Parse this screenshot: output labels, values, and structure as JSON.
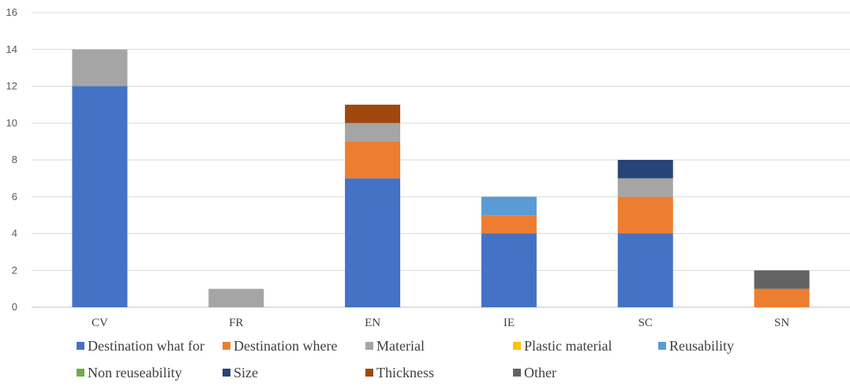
{
  "chart_data": {
    "type": "bar",
    "stacked": true,
    "categories": [
      "CV",
      "FR",
      "EN",
      "IE",
      "SC",
      "SN"
    ],
    "ylim": [
      0,
      16
    ],
    "yticks": [
      0,
      2,
      4,
      6,
      8,
      10,
      12,
      14,
      16
    ],
    "grid": true,
    "legend_position": "bottom",
    "series": [
      {
        "name": "Destination what for",
        "color": "#4472C4",
        "values": [
          12,
          0,
          7,
          4,
          4,
          0
        ]
      },
      {
        "name": "Destination where",
        "color": "#ED7D31",
        "values": [
          0,
          0,
          2,
          1,
          2,
          1
        ]
      },
      {
        "name": "Material",
        "color": "#A5A5A5",
        "values": [
          2,
          1,
          1,
          0,
          1,
          0
        ]
      },
      {
        "name": "Plastic material",
        "color": "#FFC000",
        "values": [
          0,
          0,
          0,
          0,
          0,
          0
        ]
      },
      {
        "name": "Reusability",
        "color": "#5B9BD5",
        "values": [
          0,
          0,
          0,
          1,
          0,
          0
        ]
      },
      {
        "name": "Non reuseability",
        "color": "#70AD47",
        "values": [
          0,
          0,
          0,
          0,
          0,
          0
        ]
      },
      {
        "name": "Size",
        "color": "#264478",
        "values": [
          0,
          0,
          0,
          0,
          1,
          0
        ]
      },
      {
        "name": "Thickness",
        "color": "#9E480E",
        "values": [
          0,
          0,
          1,
          0,
          0,
          0
        ]
      },
      {
        "name": "Other",
        "color": "#636363",
        "values": [
          0,
          0,
          0,
          0,
          0,
          1
        ]
      }
    ]
  }
}
